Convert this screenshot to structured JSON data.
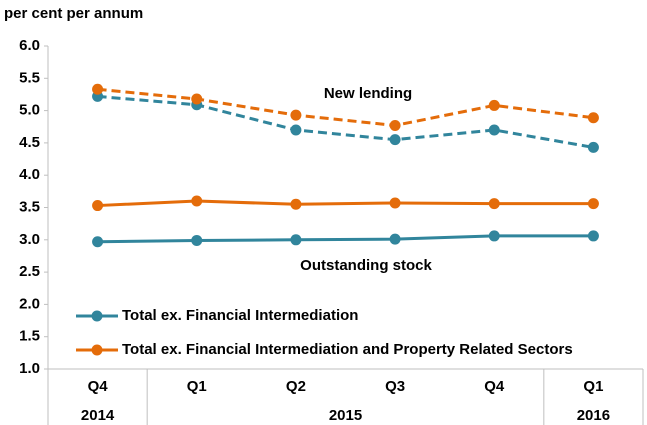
{
  "chart_data": {
    "type": "line",
    "ylabel": "per cent per annum",
    "categories": [
      "Q4",
      "Q1",
      "Q2",
      "Q3",
      "Q4",
      "Q1"
    ],
    "year_groups": [
      {
        "label": "2014",
        "span": 1
      },
      {
        "label": "2015",
        "span": 4
      },
      {
        "label": "2016",
        "span": 1
      }
    ],
    "annotations": [
      "New lending",
      "Outstanding stock"
    ],
    "series": [
      {
        "name": "Total ex. Financial Intermediation",
        "color": "#31859c",
        "new_lending": [
          5.22,
          5.09,
          4.7,
          4.55,
          4.7,
          4.43
        ],
        "outstanding_stock": [
          2.97,
          2.99,
          3.0,
          3.01,
          3.06,
          3.06
        ]
      },
      {
        "name": "Total ex. Financial Intermediation and Property Related Sectors",
        "color": "#e46c0a",
        "new_lending": [
          5.33,
          5.18,
          4.93,
          4.77,
          5.08,
          4.89
        ],
        "outstanding_stock": [
          3.53,
          3.6,
          3.55,
          3.57,
          3.56,
          3.56
        ]
      }
    ],
    "ylim": [
      1.0,
      6.0
    ],
    "yticks": [
      {
        "value": 1.0,
        "label": "1.0"
      },
      {
        "value": 1.5,
        "label": "1.5"
      },
      {
        "value": 2.0,
        "label": "2.0"
      },
      {
        "value": 2.5,
        "label": "2.5"
      },
      {
        "value": 3.0,
        "label": "3.0"
      },
      {
        "value": 3.5,
        "label": "3.5"
      },
      {
        "value": 4.0,
        "label": "4.0"
      },
      {
        "value": 4.5,
        "label": "4.5"
      },
      {
        "value": 5.0,
        "label": "5.0"
      },
      {
        "value": 5.5,
        "label": "5.5"
      },
      {
        "value": 6.0,
        "label": "6.0"
      }
    ],
    "grid": false
  }
}
